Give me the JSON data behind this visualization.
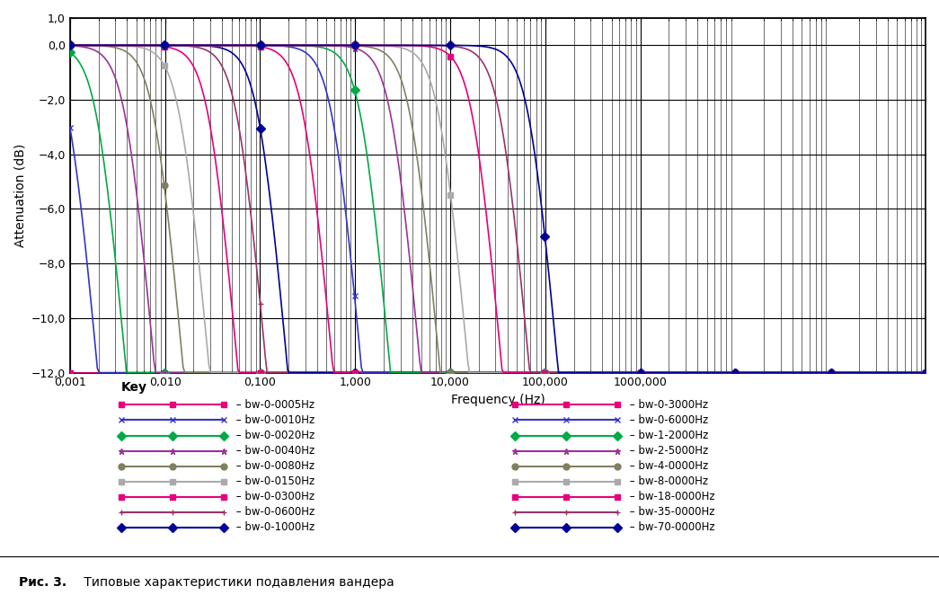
{
  "title": "",
  "xlabel": "Frequency (Hz)",
  "ylabel": "Attenuation (dB)",
  "xmin": 0.001,
  "xmax": 1000000,
  "ymin": -12,
  "ymax": 1.0,
  "yticks": [
    1.0,
    0.0,
    -2.0,
    -4.0,
    -6.0,
    -8.0,
    -10.0,
    -12.0
  ],
  "ytick_labels": [
    "1,0",
    "0,0",
    "−2,0",
    "−4,0",
    "−6,0",
    "−8,0",
    "−10,0",
    "−12,0"
  ],
  "xtick_labels": [
    "0,001",
    "0,010",
    "0,100",
    "1,000",
    "10,000",
    "100,000",
    "1000,000"
  ],
  "xtick_values": [
    0.001,
    0.01,
    0.1,
    1.0,
    10.0,
    100.0,
    1000.0
  ],
  "caption_bold": "Рис. 3.",
  "caption_normal": " Типовые характеристики подавления вандера",
  "key_label": "Key",
  "series": [
    {
      "label": "bw-0-0005Hz",
      "bw": 0.0005,
      "color": "#e6007e",
      "marker": "s",
      "linestyle": "-"
    },
    {
      "label": "bw-0-0010Hz",
      "bw": 0.001,
      "color": "#3333cc",
      "marker": "x",
      "linestyle": "-"
    },
    {
      "label": "bw-0-0020Hz",
      "bw": 0.002,
      "color": "#00aa44",
      "marker": "D",
      "linestyle": "-"
    },
    {
      "label": "bw-0-0040Hz",
      "bw": 0.004,
      "color": "#993399",
      "marker": "*",
      "linestyle": "-"
    },
    {
      "label": "bw-0-0080Hz",
      "bw": 0.008,
      "color": "#808060",
      "marker": "o",
      "linestyle": "-"
    },
    {
      "label": "bw-0-0150Hz",
      "bw": 0.015,
      "color": "#aaaaaa",
      "marker": "s",
      "linestyle": "-"
    },
    {
      "label": "bw-0-0300Hz",
      "bw": 0.03,
      "color": "#e6007e",
      "marker": "s",
      "linestyle": "-"
    },
    {
      "label": "bw-0-0600Hz",
      "bw": 0.06,
      "color": "#993366",
      "marker": "+",
      "linestyle": "-"
    },
    {
      "label": "bw-0-1000Hz",
      "bw": 0.1,
      "color": "#000099",
      "marker": "D",
      "linestyle": "-"
    },
    {
      "label": "bw-0-3000Hz",
      "bw": 0.3,
      "color": "#e6007e",
      "marker": "s",
      "linestyle": "-"
    },
    {
      "label": "bw-0-6000Hz",
      "bw": 0.6,
      "color": "#3333cc",
      "marker": "x",
      "linestyle": "-"
    },
    {
      "label": "bw-1-2000Hz",
      "bw": 1.2,
      "color": "#00aa44",
      "marker": "D",
      "linestyle": "-"
    },
    {
      "label": "bw-2-5000Hz",
      "bw": 2.5,
      "color": "#993399",
      "marker": "*",
      "linestyle": "-"
    },
    {
      "label": "bw-4-0000Hz",
      "bw": 4.0,
      "color": "#808060",
      "marker": "o",
      "linestyle": "-"
    },
    {
      "label": "bw-8-0000Hz",
      "bw": 8.0,
      "color": "#aaaaaa",
      "marker": "s",
      "linestyle": "-"
    },
    {
      "label": "bw-18-0000Hz",
      "bw": 18.0,
      "color": "#e6007e",
      "marker": "s",
      "linestyle": "-"
    },
    {
      "label": "bw-35-0000Hz",
      "bw": 35.0,
      "color": "#993366",
      "marker": "+",
      "linestyle": "-"
    },
    {
      "label": "bw-70-0000Hz",
      "bw": 70.0,
      "color": "#000099",
      "marker": "D",
      "linestyle": "-"
    }
  ]
}
